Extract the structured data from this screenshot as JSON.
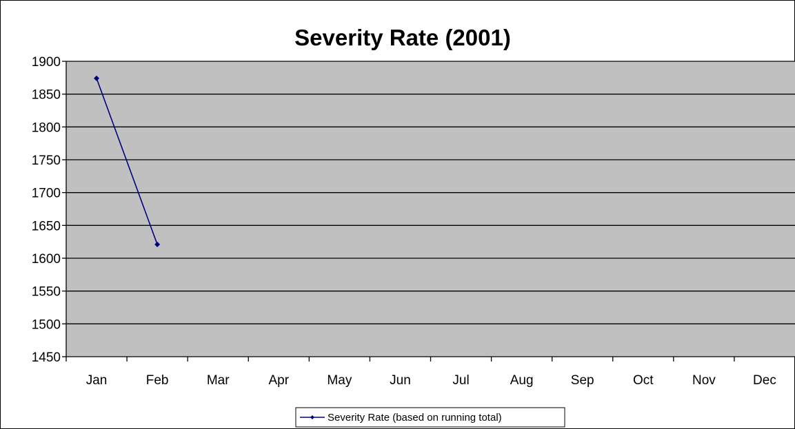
{
  "chart_data": {
    "type": "line",
    "title": "Severity Rate (2001)",
    "xlabel": "",
    "ylabel": "",
    "categories": [
      "Jan",
      "Feb",
      "Mar",
      "Apr",
      "May",
      "Jun",
      "Jul",
      "Aug",
      "Sep",
      "Oct",
      "Nov",
      "Dec"
    ],
    "y_ticks": [
      "1450",
      "1500",
      "1550",
      "1600",
      "1650",
      "1700",
      "1750",
      "1800",
      "1850",
      "1900"
    ],
    "ylim": [
      1450,
      1900
    ],
    "grid": "horizontal",
    "legend_position": "bottom",
    "plot_background": "#c0c0c0",
    "series": [
      {
        "name": "Severity Rate (based on running total)",
        "color": "#000080",
        "values": [
          1874,
          1621,
          null,
          null,
          null,
          null,
          null,
          null,
          null,
          null,
          null,
          null
        ]
      }
    ]
  }
}
